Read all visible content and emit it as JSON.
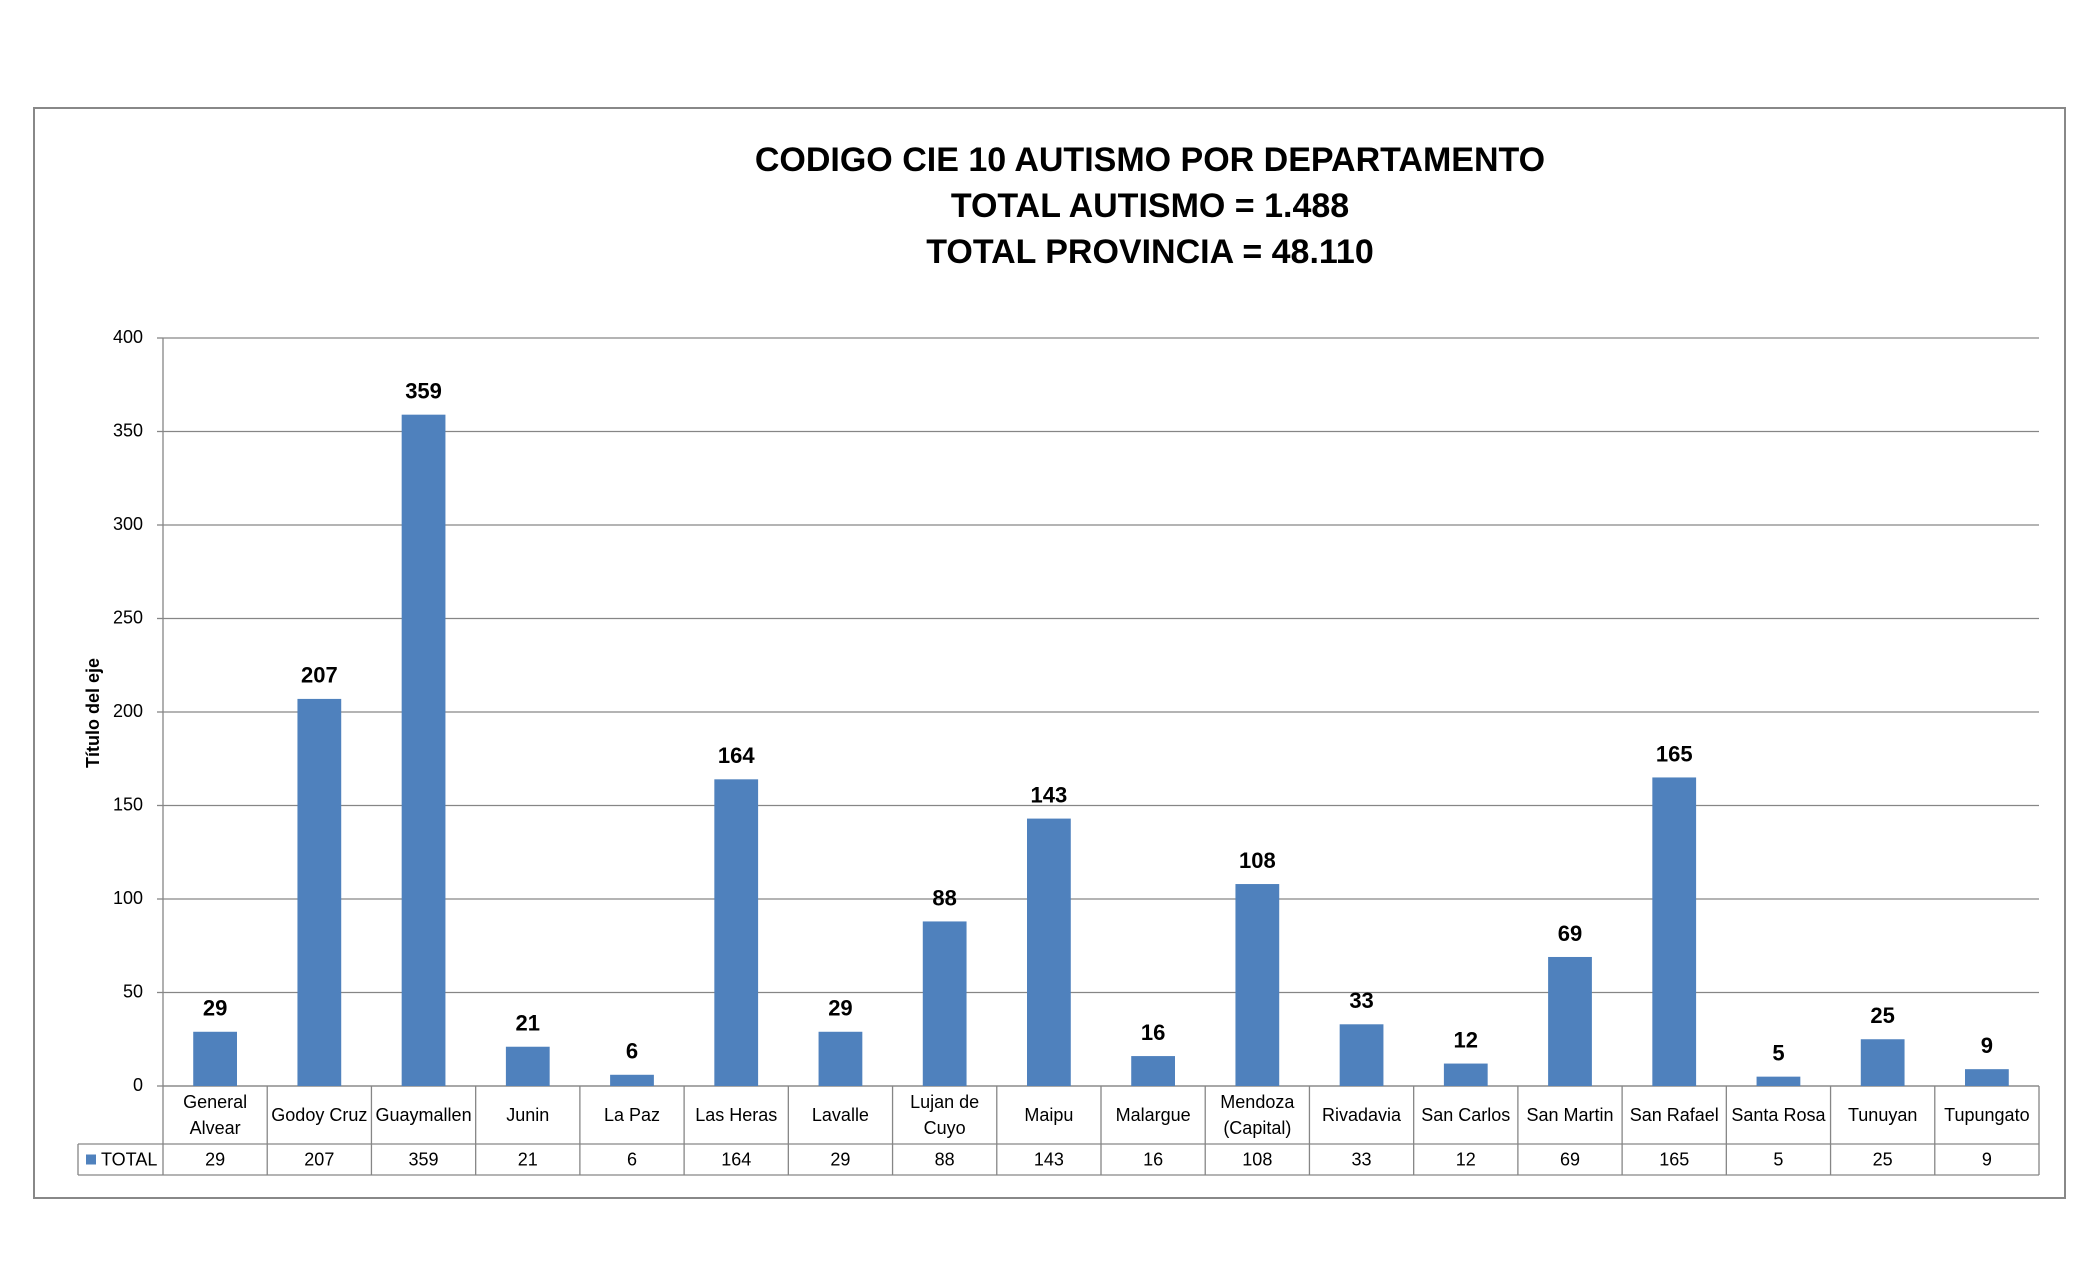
{
  "chart_data": {
    "type": "bar",
    "title": [
      "CODIGO CIE 10 AUTISMO  POR DEPARTAMENTO",
      "TOTAL  AUTISMO  = 1.488",
      "TOTAL PROVINCIA = 48.110"
    ],
    "y_label": "Título del eje",
    "categories": [
      "General Alvear",
      "Godoy Cruz",
      "Guaymallen",
      "Junin",
      "La Paz",
      "Las Heras",
      "Lavalle",
      "Lujan de Cuyo",
      "Maipu",
      "Malargue",
      "Mendoza (Capital)",
      "Rivadavia",
      "San Carlos",
      "San Martin",
      "San Rafael",
      "Santa Rosa",
      "Tunuyan",
      "Tupungato"
    ],
    "series": [
      {
        "name": "TOTAL",
        "color": "#4f81bd",
        "values": [
          29,
          207,
          359,
          21,
          6,
          164,
          29,
          88,
          143,
          16,
          108,
          33,
          12,
          69,
          165,
          5,
          25,
          9
        ]
      }
    ],
    "ylim": [
      0,
      400
    ],
    "yticks": [
      0,
      50,
      100,
      150,
      200,
      250,
      300,
      350,
      400
    ],
    "grid": true,
    "data_table": true
  }
}
